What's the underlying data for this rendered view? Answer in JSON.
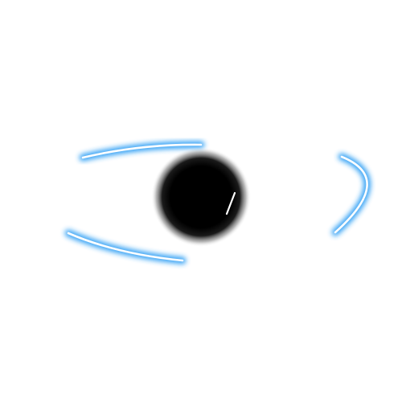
{
  "colors": {
    "background": "#ffffff",
    "glow": "#2a9df4",
    "stroke": "#ffffff",
    "pupil": "#000000"
  },
  "icons": {
    "main": "eye-icon"
  }
}
